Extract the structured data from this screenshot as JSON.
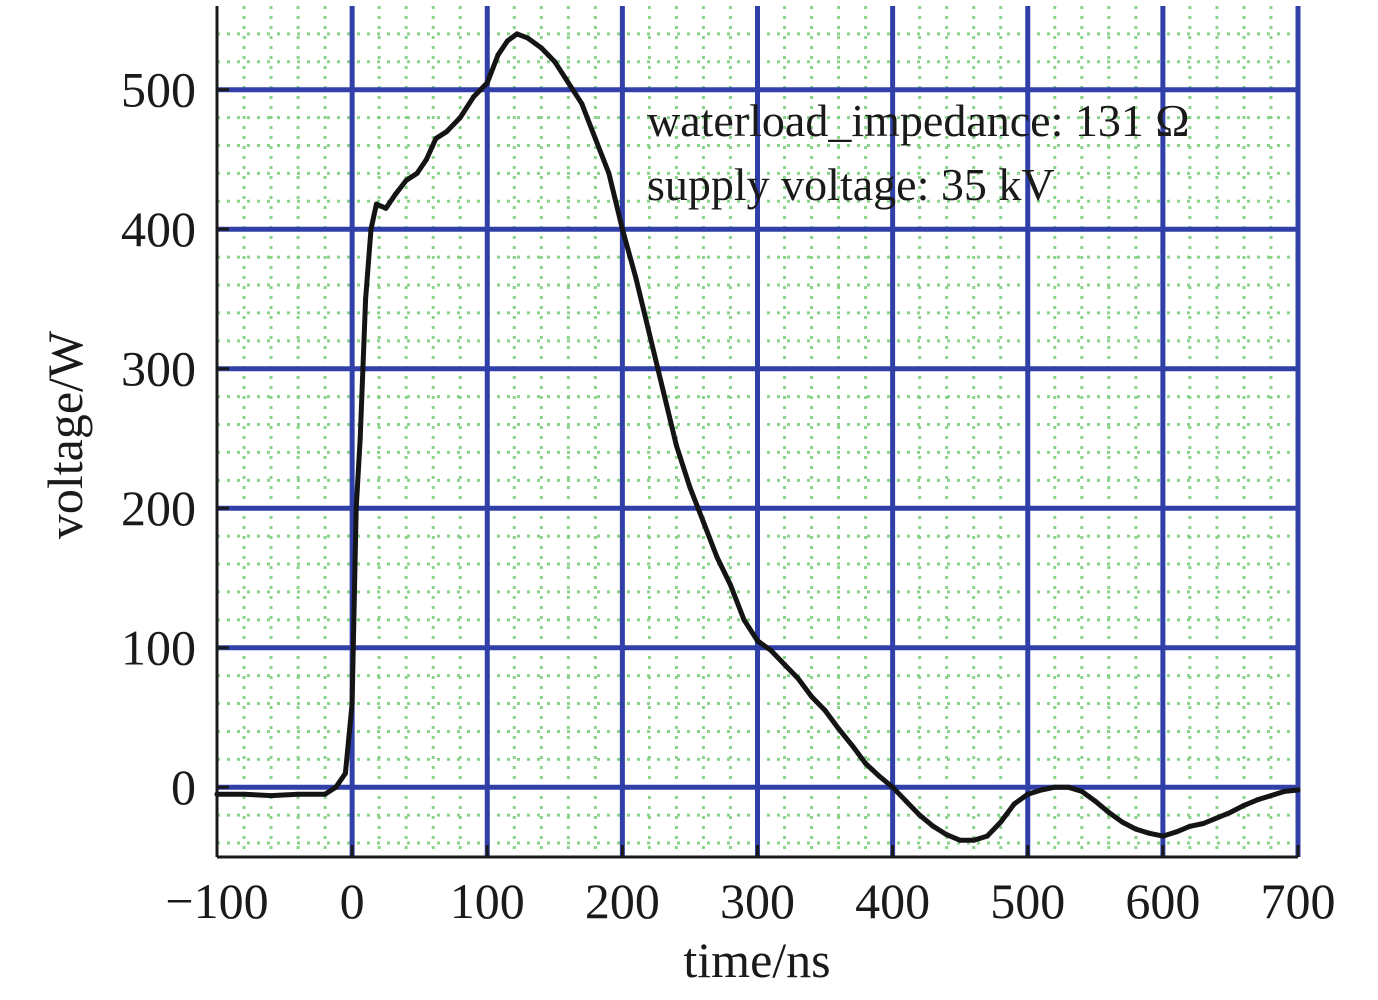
{
  "chart_data": {
    "type": "line",
    "xlabel": "time/ns",
    "ylabel": "voltage/W",
    "xlim": [
      -100,
      700
    ],
    "ylim": [
      -50,
      560
    ],
    "xticks": [
      -100,
      0,
      100,
      200,
      300,
      400,
      500,
      600,
      700
    ],
    "xtick_labels": [
      "−100",
      "0",
      "100",
      "200",
      "300",
      "400",
      "500",
      "600",
      "700"
    ],
    "yticks": [
      0,
      100,
      200,
      300,
      400,
      500
    ],
    "ytick_labels": [
      "0",
      "100",
      "200",
      "300",
      "400",
      "500"
    ],
    "grid": true,
    "annotations": [
      "waterload_impedance: 131 Ω",
      "supply voltage: 35 kV"
    ],
    "colors": {
      "major_grid": "#3040a8",
      "minor_grid": "#7fcf7f",
      "trace": "#141414",
      "axis": "#1a1a1a"
    },
    "series": [
      {
        "x": [
          -100,
          -80,
          -60,
          -40,
          -20,
          -12,
          -5,
          0,
          3,
          6,
          10,
          14,
          18,
          25,
          32,
          40,
          48,
          55,
          62,
          70,
          80,
          90,
          100,
          108,
          115,
          122,
          130,
          140,
          150,
          160,
          170,
          180,
          190,
          200,
          210,
          220,
          230,
          240,
          250,
          260,
          270,
          280,
          290,
          300,
          310,
          320,
          330,
          340,
          350,
          360,
          370,
          380,
          390,
          400,
          410,
          420,
          430,
          440,
          450,
          460,
          470,
          480,
          490,
          500,
          510,
          520,
          530,
          540,
          550,
          560,
          570,
          580,
          590,
          600,
          610,
          620,
          630,
          640,
          650,
          660,
          670,
          680,
          690,
          700
        ],
        "y": [
          -5,
          -5,
          -6,
          -5,
          -5,
          0,
          10,
          60,
          200,
          250,
          350,
          400,
          418,
          415,
          425,
          435,
          440,
          450,
          465,
          470,
          480,
          495,
          505,
          525,
          535,
          540,
          537,
          530,
          520,
          505,
          490,
          465,
          440,
          400,
          365,
          325,
          285,
          245,
          215,
          190,
          165,
          145,
          120,
          105,
          98,
          88,
          78,
          65,
          55,
          42,
          30,
          17,
          8,
          0,
          -10,
          -20,
          -28,
          -34,
          -38,
          -38,
          -35,
          -25,
          -12,
          -5,
          -2,
          0,
          0,
          -3,
          -10,
          -18,
          -25,
          -30,
          -33,
          -35,
          -32,
          -28,
          -26,
          -22,
          -18,
          -13,
          -9,
          -6,
          -3,
          -2
        ]
      }
    ]
  }
}
